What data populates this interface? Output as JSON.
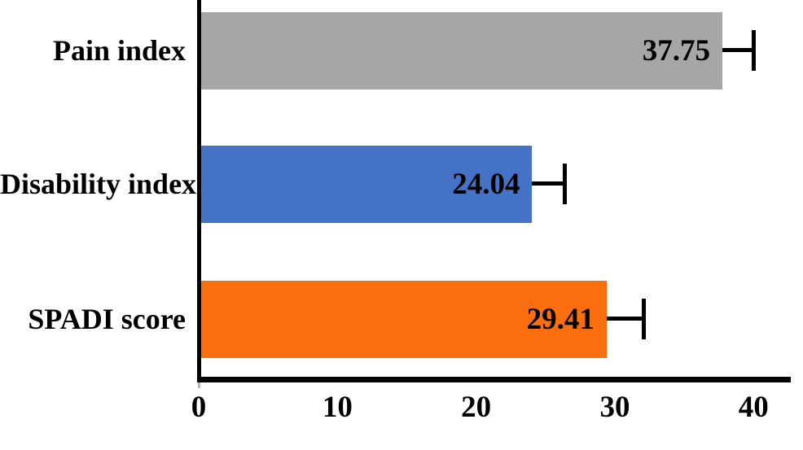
{
  "chart_data": {
    "type": "bar",
    "orientation": "horizontal",
    "title": "",
    "xlabel": "",
    "ylabel": "",
    "categories": [
      "Pain index",
      "Disability index",
      "SPADI score"
    ],
    "values": [
      37.75,
      24.04,
      29.41
    ],
    "value_labels": [
      "37.75",
      "24.04",
      "29.41"
    ],
    "errors_upper": [
      2.3,
      2.4,
      2.7
    ],
    "bar_colors": [
      "#A6A6A6",
      "#4472C4",
      "#FB6E0D"
    ],
    "error_bar_color": "#000000",
    "axis_color": "#000000",
    "text_color": "#000000",
    "background_color": "#FFFFFF",
    "xtick_labels": [
      "0",
      "10",
      "20",
      "30",
      "40"
    ],
    "xtick_values": [
      0,
      10,
      20,
      30,
      40
    ],
    "xlim": [
      0,
      42.8
    ],
    "grid": false,
    "legend": false
  }
}
